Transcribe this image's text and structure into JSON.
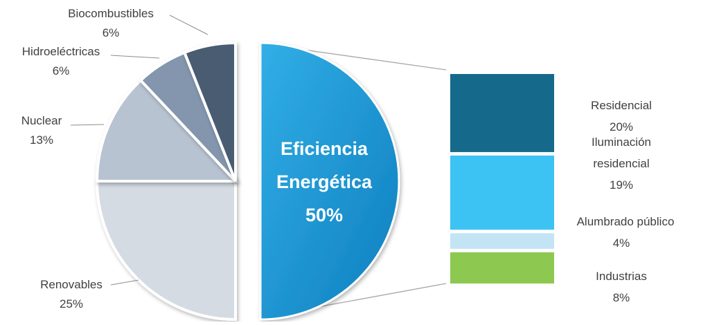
{
  "chart_data": {
    "type": "bar-of-pie",
    "title": "",
    "pie": {
      "slices": [
        {
          "label": "Eficiencia Energética",
          "value": 50,
          "value_label": "50%",
          "color": "#1f97d4",
          "highlighted": true
        },
        {
          "label": "Renovables",
          "value": 25,
          "value_label": "25%",
          "color": "#d5dbe3"
        },
        {
          "label": "Nuclear",
          "value": 13,
          "value_label": "13%",
          "color": "#b8c3d1"
        },
        {
          "label": "Hidroeléctricas",
          "value": 6,
          "value_label": "6%",
          "color": "#8396ad"
        },
        {
          "label": "Biocombustibles",
          "value": 6,
          "value_label": "6%",
          "color": "#4a5b72"
        }
      ]
    },
    "bar": {
      "segments": [
        {
          "label": "Residencial",
          "value": 20,
          "value_label": "20%",
          "color": "#156a8c"
        },
        {
          "label": "Iluminación residencial",
          "label_lines": [
            "Iluminación",
            "residencial"
          ],
          "value": 19,
          "value_label": "19%",
          "color": "#3cc3f3"
        },
        {
          "label": "Alumbrado público",
          "value": 4,
          "value_label": "4%",
          "color": "#c3e4f5"
        },
        {
          "label": "Industrias",
          "value": 8,
          "value_label": "8%",
          "color": "#8dc951"
        }
      ]
    },
    "center_label": {
      "line1": "Eficiencia",
      "line2": "Energética",
      "line3": "50%"
    }
  }
}
